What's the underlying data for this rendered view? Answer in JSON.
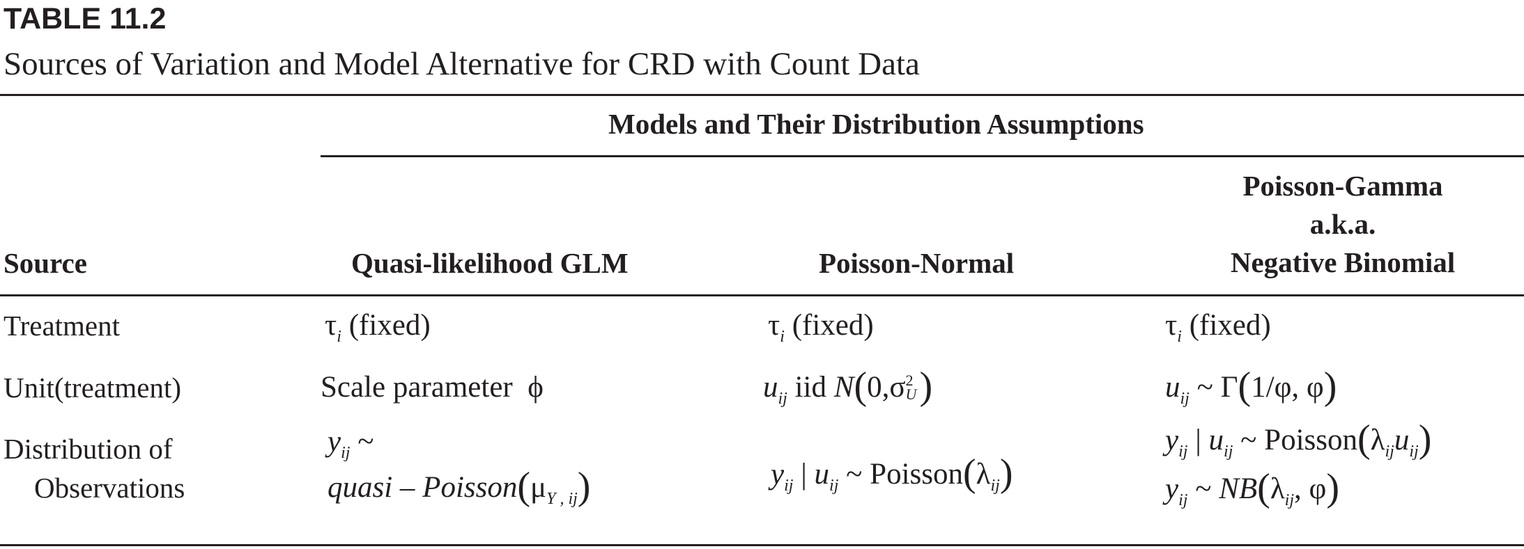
{
  "table_number": "TABLE 11.2",
  "table_title": "Sources of Variation and Model Alternative for CRD with Count Data",
  "group_header": "Models and Their Distribution Assumptions",
  "columns": {
    "source": "Source",
    "quasi": "Quasi-likelihood GLM",
    "poisson_normal": "Poisson-Normal",
    "poisson_gamma_line1": "Poisson-Gamma",
    "poisson_gamma_line2": "a.k.a.",
    "poisson_gamma_line3": "Negative Binomial"
  },
  "rows": {
    "treatment": {
      "source": "Treatment",
      "fixed": "(fixed)"
    },
    "unit": {
      "source": "Unit(treatment)",
      "quasi_text": "Scale parameter",
      "iid": "iid",
      "N": "N",
      "zero": "0,"
    },
    "distribution": {
      "source_line1": "Distribution of",
      "source_line2": "Observations",
      "quasi_line1_tilde": "~",
      "quasi_line2": "quasi – Poisson",
      "poisson": "Poisson",
      "NB": "NB"
    }
  }
}
